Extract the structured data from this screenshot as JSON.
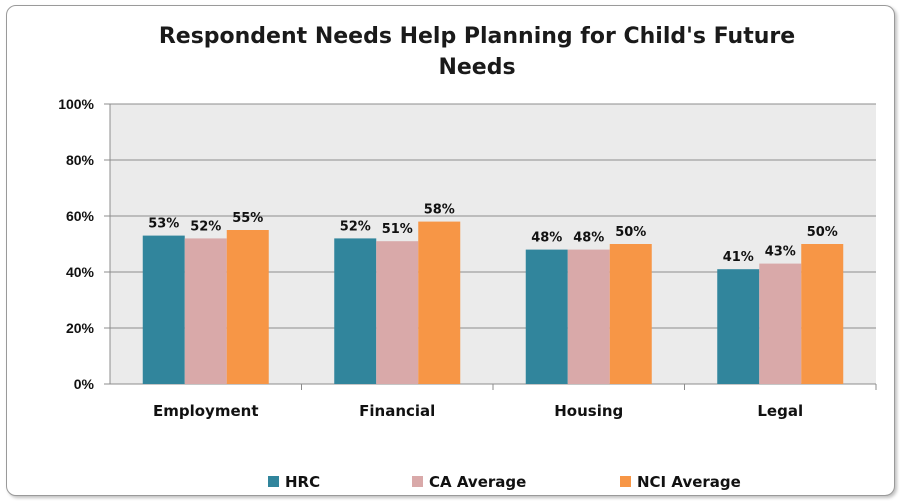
{
  "chart_data": {
    "type": "bar",
    "title": "Respondent Needs Help Planning for Child's Future Needs",
    "categories": [
      "Employment",
      "Financial",
      "Housing",
      "Legal"
    ],
    "series": [
      {
        "name": "HRC",
        "color": "#31859c",
        "values": [
          53,
          52,
          48,
          41
        ]
      },
      {
        "name": "CA Average",
        "color": "#d9a9a9",
        "values": [
          52,
          51,
          48,
          43
        ]
      },
      {
        "name": "NCI Average",
        "color": "#f79646",
        "values": [
          55,
          58,
          50,
          50
        ]
      }
    ],
    "ylim": [
      0,
      100
    ],
    "yticks": [
      "0%",
      "20%",
      "40%",
      "60%",
      "80%",
      "100%"
    ],
    "value_suffix": "%",
    "grid": true,
    "plot_background": "#ebebeb",
    "legend": "bottom"
  }
}
